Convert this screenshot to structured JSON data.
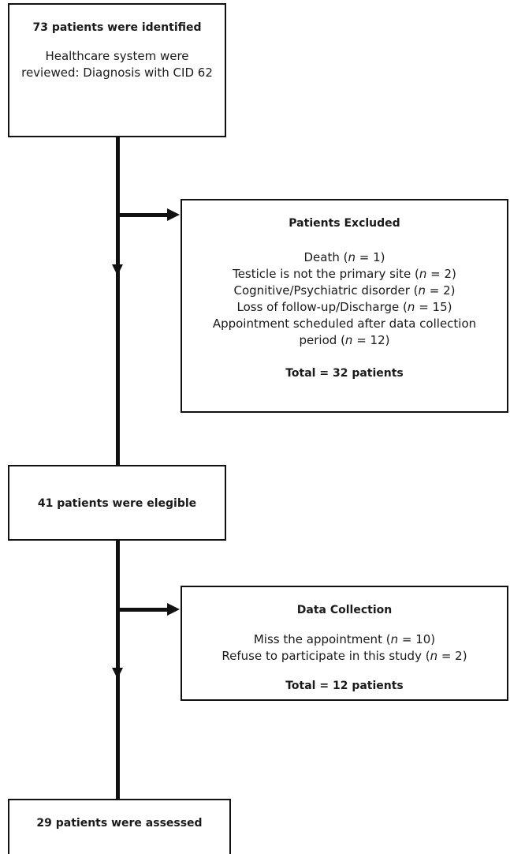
{
  "identified": {
    "title": "73 patients were identified",
    "text": "Healthcare system were reviewed: Diagnosis with CID 62"
  },
  "excluded": {
    "title": "Patients Excluded",
    "items": [
      {
        "label": "Death (",
        "n": "n",
        "rest": " = 1)"
      },
      {
        "label": "Testicle is not the primary site (",
        "n": "n",
        "rest": " = 2)"
      },
      {
        "label": "Cognitive/Psychiatric disorder (",
        "n": "n",
        "rest": " = 2)"
      },
      {
        "label": "Loss of follow-up/Discharge (",
        "n": "n",
        "rest": " = 15)"
      },
      {
        "label": "Appointment scheduled after data collection period (",
        "n": "n",
        "rest": " = 12)"
      }
    ],
    "total": "Total = 32 patients"
  },
  "eligible": {
    "title": "41 patients were elegible"
  },
  "data_collection": {
    "title": "Data Collection",
    "items": [
      {
        "label": "Miss the appointment (",
        "n": "n",
        "rest": " = 10)"
      },
      {
        "label": "Refuse to participate in this study (",
        "n": "n",
        "rest": " = 2)"
      }
    ],
    "total": "Total = 12 patients"
  },
  "assessed": {
    "title": "29 patients were assessed"
  }
}
